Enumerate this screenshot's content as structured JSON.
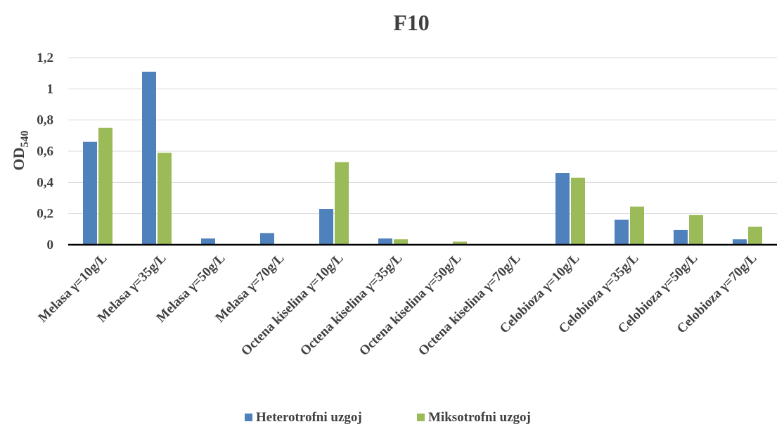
{
  "chart_data": {
    "type": "bar",
    "title": "F10",
    "ylabel": "OD",
    "ylabel_subscript": "540",
    "xlabel": "",
    "ylim": [
      0,
      1.2
    ],
    "yticks": [
      "0",
      "0,2",
      "0,4",
      "0,6",
      "0,8",
      "1",
      "1,2"
    ],
    "categories": [
      "Melasa γ=10g/L",
      "Melasa γ=35g/L",
      "Melasa γ=50g/L",
      "Melasa γ=70g/L",
      "Octena kiselina γ=10g/L",
      "Octena kiselina γ=35g/L",
      "Octena kiselina γ=50g/L",
      "Octena kiselina γ=70g/L",
      "Celobioza γ=10g/L",
      "Celobioza γ=35g/L",
      "Celobioza γ=50g/L",
      "Celobioza γ=70g/L"
    ],
    "series": [
      {
        "name": "Heterotrofni uzgoj",
        "color": "#4f81bd",
        "values": [
          0.66,
          1.11,
          0.04,
          0.075,
          0.23,
          0.04,
          0.0,
          0.0,
          0.46,
          0.16,
          0.095,
          0.035
        ]
      },
      {
        "name": "Miksotrofni uzgoj",
        "color": "#9bbb59",
        "values": [
          0.75,
          0.59,
          0.0,
          0.0,
          0.53,
          0.035,
          0.02,
          0.0,
          0.43,
          0.245,
          0.19,
          0.115
        ]
      }
    ],
    "grid": true,
    "legend_position": "bottom"
  }
}
